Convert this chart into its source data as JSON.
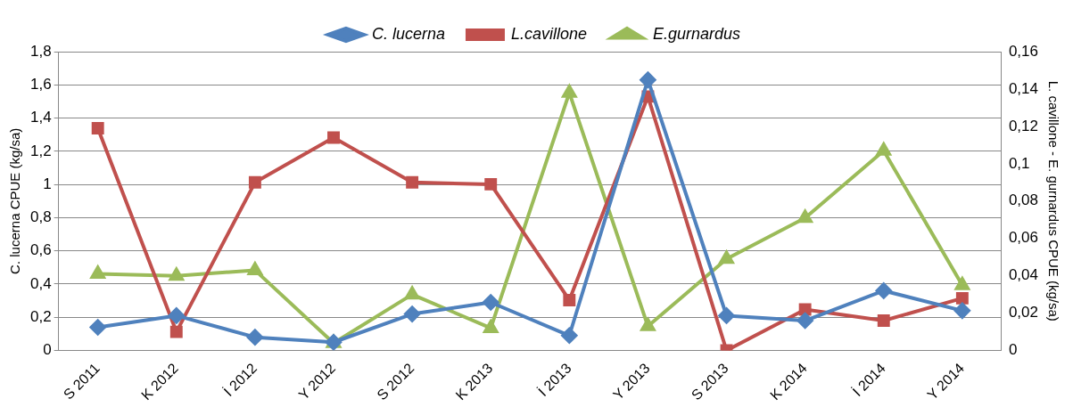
{
  "chart_data": {
    "type": "line",
    "categories": [
      "S 2011",
      "K 2012",
      "İ 2012",
      "Y 2012",
      "S 2012",
      "K 2013",
      "İ 2013",
      "Y 2013",
      "S 2013",
      "K 2014",
      "İ 2014",
      "Y 2014"
    ],
    "series": [
      {
        "name": "C. lucerna",
        "color": "#4f81bd",
        "marker": "diamond",
        "values": [
          0.14,
          0.21,
          0.08,
          0.05,
          0.22,
          0.29,
          0.09,
          1.63,
          0.21,
          0.18,
          0.36,
          0.24
        ]
      },
      {
        "name": "L.cavillone",
        "color": "#c0504d",
        "marker": "square",
        "axis": "y2",
        "values": [
          0.119,
          0.01,
          0.09,
          0.114,
          0.09,
          0.089,
          0.027,
          0.136,
          0,
          0.022,
          0.016,
          0.028
        ]
      },
      {
        "name": "E.gurnardus",
        "color": "#9bbb59",
        "marker": "triangle",
        "axis": "y2",
        "values": [
          0.041,
          0.04,
          0.043,
          0.004,
          0.03,
          0.012,
          0.138,
          0.013,
          0.049,
          0.071,
          0.107,
          0.035
        ]
      }
    ],
    "ylabel": "C. lucerna CPUE (kg/sa)",
    "y2label": "L. cavillone - E. gurnardus CPUE (kg/sa)",
    "ylim": [
      0,
      1.8
    ],
    "yticks": [
      {
        "value": 0,
        "label": "0"
      },
      {
        "value": 0.2,
        "label": "0,2"
      },
      {
        "value": 0.4,
        "label": "0,4"
      },
      {
        "value": 0.6,
        "label": "0,6"
      },
      {
        "value": 0.8,
        "label": "0,8"
      },
      {
        "value": 1,
        "label": "1"
      },
      {
        "value": 1.2,
        "label": "1,2"
      },
      {
        "value": 1.4,
        "label": "1,4"
      },
      {
        "value": 1.6,
        "label": "1,6"
      },
      {
        "value": 1.8,
        "label": "1,8"
      }
    ],
    "y2lim": [
      0,
      0.16
    ],
    "y2ticks": [
      {
        "value": 0,
        "label": "0"
      },
      {
        "value": 0.02,
        "label": "0,02"
      },
      {
        "value": 0.04,
        "label": "0,04"
      },
      {
        "value": 0.06,
        "label": "0,06"
      },
      {
        "value": 0.08,
        "label": "0,08"
      },
      {
        "value": 0.1,
        "label": "0,1"
      },
      {
        "value": 0.12,
        "label": "0,12"
      },
      {
        "value": 0.14,
        "label": "0,14"
      },
      {
        "value": 0.16,
        "label": "0,16"
      }
    ],
    "grid": "y",
    "legend": "top",
    "line_style": "solid"
  }
}
